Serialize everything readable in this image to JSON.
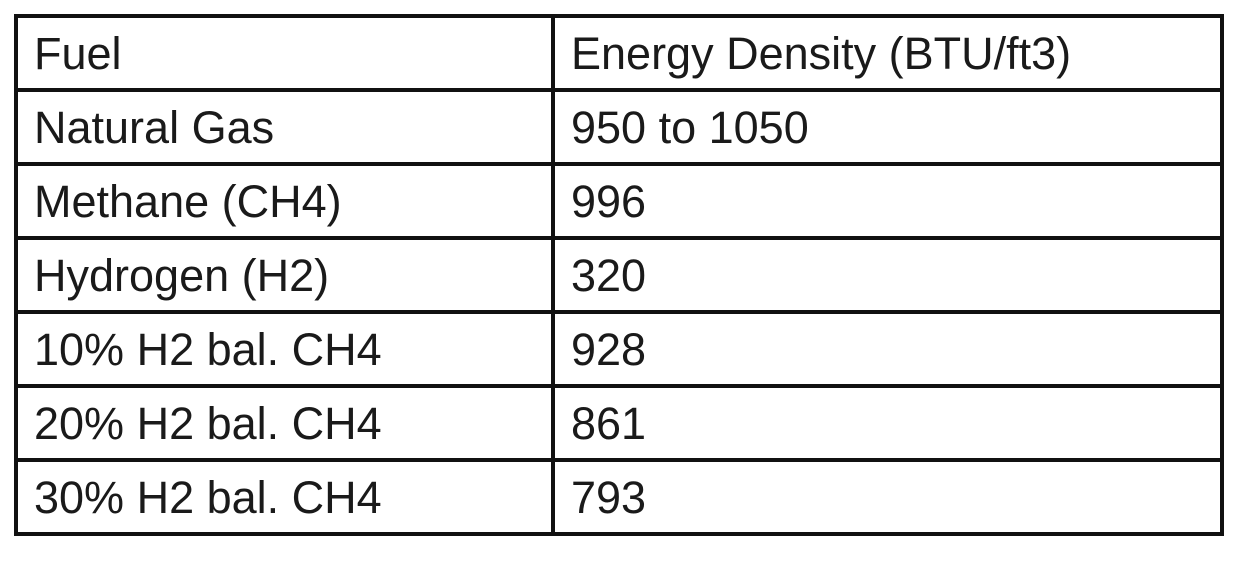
{
  "table": {
    "header": [
      "Fuel",
      "Energy Density (BTU/ft3)"
    ],
    "rows": [
      [
        "Natural Gas",
        "950 to 1050"
      ],
      [
        "Methane (CH4)",
        "996"
      ],
      [
        "Hydrogen (H2)",
        "320"
      ],
      [
        "10% H2 bal. CH4",
        "928"
      ],
      [
        "20% H2 bal. CH4",
        "861"
      ],
      [
        "30% H2 bal. CH4",
        "793"
      ]
    ]
  }
}
